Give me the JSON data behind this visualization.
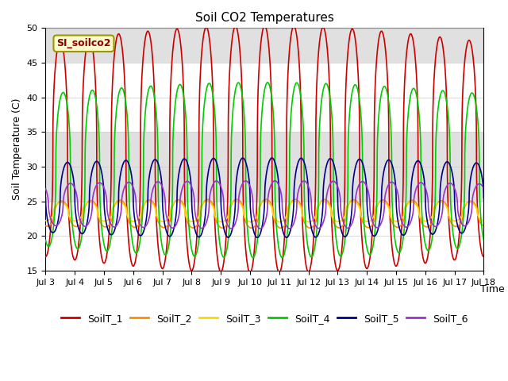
{
  "title": "Soil CO2 Temperatures",
  "xlabel": "Time",
  "ylabel": "Soil Temperature (C)",
  "annotation": "SI_soilco2",
  "ylim": [
    15,
    50
  ],
  "x_start_day": 3,
  "x_end_day": 18,
  "x_tick_days": [
    3,
    4,
    5,
    6,
    7,
    8,
    9,
    10,
    11,
    12,
    13,
    14,
    15,
    16,
    17,
    18
  ],
  "x_tick_labels": [
    "Jul 3",
    "Jul 4",
    "Jul 5",
    "Jul 6",
    "Jul 7",
    "Jul 8",
    "Jul 9",
    "Jul 10",
    "Jul 11",
    "Jul 12",
    "Jul 13",
    "Jul 14",
    "Jul 15",
    "Jul 16",
    "Jul 17",
    "Jul 18"
  ],
  "series_names": [
    "SoilT_1",
    "SoilT_2",
    "SoilT_3",
    "SoilT_4",
    "SoilT_5",
    "SoilT_6"
  ],
  "series_colors": [
    "#cc0000",
    "#ff8c00",
    "#ffd700",
    "#00cc00",
    "#00008b",
    "#9932cc"
  ],
  "band_ranges": [
    [
      25,
      35
    ],
    [
      45,
      50
    ]
  ],
  "band_color": "#e0e0e0",
  "background_color": "#ffffff",
  "linewidth": 1.2
}
